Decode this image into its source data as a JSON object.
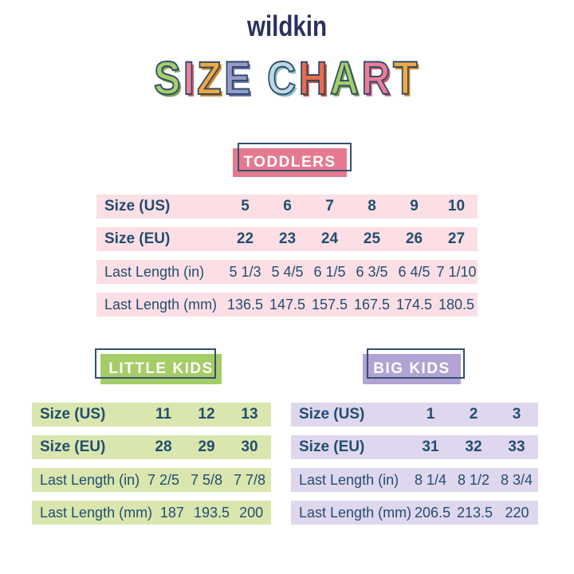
{
  "brand": "wildkin",
  "title": {
    "text": "SIZE CHART",
    "outline_color": "#2e4c6c",
    "letters": [
      {
        "ch": "S",
        "fill": "#a6ce6b",
        "shadow": "#7da34c"
      },
      {
        "ch": "I",
        "fill": "#f08196",
        "shadow": "#d15c77"
      },
      {
        "ch": "Z",
        "fill": "#f5a840",
        "shadow": "#d1831f"
      },
      {
        "ch": "E",
        "fill": "#989bc6",
        "shadow": "#6e71a4"
      },
      {
        "ch": " "
      },
      {
        "ch": "C",
        "fill": "#bcdae0",
        "shadow": "#93bcc4"
      },
      {
        "ch": "H",
        "fill": "#e96b4b",
        "shadow": "#c14a2d"
      },
      {
        "ch": "A",
        "fill": "#a6ce6b",
        "shadow": "#7da34c"
      },
      {
        "ch": "R",
        "fill": "#ec7d95",
        "shadow": "#c65a75"
      },
      {
        "ch": "T",
        "fill": "#f5a93f",
        "shadow": "#d1871f"
      }
    ]
  },
  "colors": {
    "logo_navy": "#2a3060",
    "table_text_navy": "#234d70",
    "badge_outline_navy": "#33506f",
    "background": "#ffffff"
  },
  "sections": {
    "toddlers": {
      "label": "TODDLERS",
      "badge_fill": "#e5798f",
      "row_bg": "#fbdfe5",
      "rows": [
        {
          "label": "Size (US)",
          "bold": true,
          "values": [
            "5",
            "6",
            "7",
            "8",
            "9",
            "10"
          ]
        },
        {
          "label": "Size (EU)",
          "bold": true,
          "values": [
            "22",
            "23",
            "24",
            "25",
            "26",
            "27"
          ]
        },
        {
          "label": "Last Length (in)",
          "bold": false,
          "values": [
            "5 1/3",
            "5 4/5",
            "6 1/5",
            "6 3/5",
            "6 4/5",
            "7 1/10"
          ]
        },
        {
          "label": "Last Length (mm)",
          "bold": false,
          "values": [
            "136.5",
            "147.5",
            "157.5",
            "167.5",
            "174.5",
            "180.5"
          ]
        }
      ]
    },
    "little_kids": {
      "label": "LITTLE KIDS",
      "badge_fill": "#a5cc66",
      "row_bg": "#d9e7ae",
      "rows": [
        {
          "label": "Size (US)",
          "bold": true,
          "values": [
            "11",
            "12",
            "13"
          ]
        },
        {
          "label": "Size (EU)",
          "bold": true,
          "values": [
            "28",
            "29",
            "30"
          ]
        },
        {
          "label": "Last Length (in)",
          "bold": false,
          "values": [
            "7 2/5",
            "7 5/8",
            "7 7/8"
          ]
        },
        {
          "label": "Last Length (mm)",
          "bold": false,
          "values": [
            "187",
            "193.5",
            "200"
          ]
        }
      ]
    },
    "big_kids": {
      "label": "BIG KIDS",
      "badge_fill": "#b1a3d3",
      "row_bg": "#ded7ed",
      "rows": [
        {
          "label": "Size (US)",
          "bold": true,
          "values": [
            "1",
            "2",
            "3"
          ]
        },
        {
          "label": "Size (EU)",
          "bold": true,
          "values": [
            "31",
            "32",
            "33"
          ]
        },
        {
          "label": "Last Length (in)",
          "bold": false,
          "values": [
            "8 1/4",
            "8 1/2",
            "8 3/4"
          ]
        },
        {
          "label": "Last Length (mm)",
          "bold": false,
          "values": [
            "206.5",
            "213.5",
            "220"
          ]
        }
      ]
    }
  },
  "chart_data": [
    {
      "type": "table",
      "title": "TODDLERS",
      "row_headers": [
        "Size (US)",
        "Size (EU)",
        "Last Length (in)",
        "Last Length (mm)"
      ],
      "rows": [
        [
          "5",
          "6",
          "7",
          "8",
          "9",
          "10"
        ],
        [
          "22",
          "23",
          "24",
          "25",
          "26",
          "27"
        ],
        [
          "5 1/3",
          "5 4/5",
          "6 1/5",
          "6 3/5",
          "6 4/5",
          "7 1/10"
        ],
        [
          "136.5",
          "147.5",
          "157.5",
          "167.5",
          "174.5",
          "180.5"
        ]
      ]
    },
    {
      "type": "table",
      "title": "LITTLE KIDS",
      "row_headers": [
        "Size (US)",
        "Size (EU)",
        "Last Length (in)",
        "Last Length (mm)"
      ],
      "rows": [
        [
          "11",
          "12",
          "13"
        ],
        [
          "28",
          "29",
          "30"
        ],
        [
          "7 2/5",
          "7 5/8",
          "7 7/8"
        ],
        [
          "187",
          "193.5",
          "200"
        ]
      ]
    },
    {
      "type": "table",
      "title": "BIG KIDS",
      "row_headers": [
        "Size (US)",
        "Size (EU)",
        "Last Length (in)",
        "Last Length (mm)"
      ],
      "rows": [
        [
          "1",
          "2",
          "3"
        ],
        [
          "31",
          "32",
          "33"
        ],
        [
          "8 1/4",
          "8 1/2",
          "8 3/4"
        ],
        [
          "206.5",
          "213.5",
          "220"
        ]
      ]
    }
  ]
}
